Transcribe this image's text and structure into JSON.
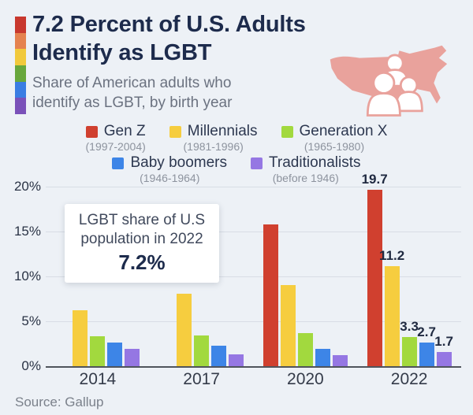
{
  "header": {
    "title": "7.2 Percent of U.S. Adults\nIdentify as LGBT",
    "subtitle": "Share of American adults who\nidentify as LGBT, by birth year",
    "pride_stripe_colors": [
      "#c8382e",
      "#e5824f",
      "#f1c93c",
      "#68a73c",
      "#3a7de3",
      "#7a51b9"
    ],
    "map_icon": {
      "name": "us-map-with-people-icon",
      "map_color": "#e9a29c",
      "figure_color": "#ffffff"
    }
  },
  "chart_data": {
    "type": "bar",
    "categories": [
      "2014",
      "2017",
      "2020",
      "2022"
    ],
    "series": [
      {
        "name": "Gen Z",
        "birth_years": "(1997-2004)",
        "color": "#d0402f",
        "values": [
          null,
          null,
          15.9,
          19.7
        ]
      },
      {
        "name": "Millennials",
        "birth_years": "(1981-1996)",
        "color": "#f6cd3f",
        "values": [
          6.3,
          8.2,
          9.1,
          11.2
        ]
      },
      {
        "name": "Generation X",
        "birth_years": "(1965-1980)",
        "color": "#a2d93e",
        "values": [
          3.4,
          3.5,
          3.8,
          3.3
        ]
      },
      {
        "name": "Baby boomers",
        "birth_years": "(1946-1964)",
        "color": "#3d85e7",
        "values": [
          2.7,
          2.4,
          2.0,
          2.7
        ]
      },
      {
        "name": "Traditionalists",
        "birth_years": "(before 1946)",
        "color": "#9577e3",
        "values": [
          2.0,
          1.4,
          1.3,
          1.7
        ]
      }
    ],
    "data_labels": {
      "category": "2022",
      "values": [
        "19.7",
        "11.2",
        "3.3",
        "2.7",
        "1.7"
      ]
    },
    "y_ticks": [
      "0%",
      "5%",
      "10%",
      "15%",
      "20%"
    ],
    "ylim": [
      0,
      21
    ],
    "grid": true,
    "legend_position": "top",
    "annotation": {
      "text": "LGBT share of U.S\npopulation in 2022",
      "value": "7.2%"
    }
  },
  "footer": {
    "source": "Source: Gallup"
  }
}
